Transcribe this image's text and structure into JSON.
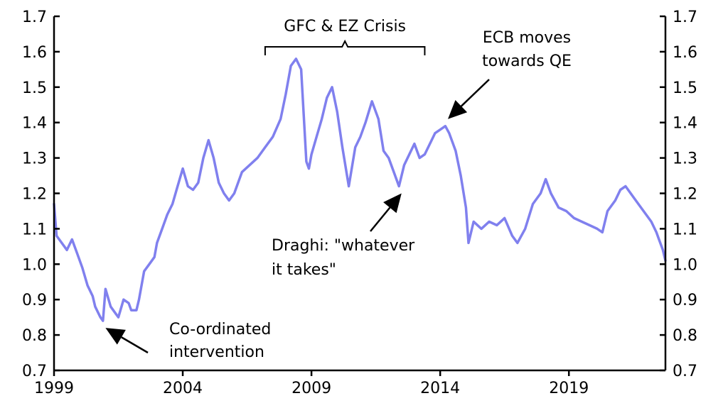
{
  "chart_data": {
    "type": "line",
    "title": "",
    "xlabel": "",
    "ylabel": "",
    "xlim": [
      1999.0,
      2022.75
    ],
    "ylim": [
      0.7,
      1.7
    ],
    "y_ticks": [
      0.7,
      0.8,
      0.9,
      1.0,
      1.1,
      1.2,
      1.3,
      1.4,
      1.5,
      1.6,
      1.7
    ],
    "y_tick_labels": [
      "0.7",
      "0.8",
      "0.9",
      "1.0",
      "1.1",
      "1.2",
      "1.3",
      "1.4",
      "1.5",
      "1.6",
      "1.7"
    ],
    "x_ticks": [
      1999,
      2004,
      2009,
      2014,
      2019
    ],
    "x_tick_labels": [
      "1999",
      "2004",
      "2009",
      "2014",
      "2019"
    ],
    "dual_y_axis": true,
    "grid": false,
    "series": [
      {
        "name": "",
        "color": "#8080ee",
        "x": [
          1999.0,
          1999.1,
          1999.3,
          1999.5,
          1999.7,
          1999.9,
          2000.1,
          2000.3,
          2000.5,
          2000.6,
          2000.8,
          2000.9,
          2001.0,
          2001.2,
          2001.4,
          2001.5,
          2001.7,
          2001.9,
          2002.0,
          2002.2,
          2002.3,
          2002.5,
          2002.7,
          2002.9,
          2003.0,
          2003.2,
          2003.4,
          2003.6,
          2003.8,
          2004.0,
          2004.2,
          2004.4,
          2004.6,
          2004.8,
          2005.0,
          2005.2,
          2005.4,
          2005.6,
          2005.8,
          2006.0,
          2006.3,
          2006.6,
          2006.9,
          2007.2,
          2007.5,
          2007.8,
          2008.0,
          2008.2,
          2008.4,
          2008.6,
          2008.8,
          2008.9,
          2009.0,
          2009.2,
          2009.4,
          2009.6,
          2009.8,
          2010.0,
          2010.2,
          2010.45,
          2010.7,
          2010.9,
          2011.1,
          2011.35,
          2011.6,
          2011.8,
          2012.0,
          2012.2,
          2012.4,
          2012.6,
          2012.8,
          2013.0,
          2013.2,
          2013.4,
          2013.6,
          2013.8,
          2014.0,
          2014.2,
          2014.35,
          2014.6,
          2014.8,
          2015.0,
          2015.1,
          2015.3,
          2015.6,
          2015.9,
          2016.2,
          2016.5,
          2016.8,
          2017.0,
          2017.3,
          2017.6,
          2017.9,
          2018.1,
          2018.3,
          2018.6,
          2018.9,
          2019.2,
          2019.5,
          2019.8,
          2020.1,
          2020.3,
          2020.5,
          2020.8,
          2021.0,
          2021.2,
          2021.5,
          2021.8,
          2022.0,
          2022.2,
          2022.4,
          2022.5,
          2022.65,
          2022.75
        ],
        "values": [
          1.17,
          1.08,
          1.06,
          1.04,
          1.07,
          1.03,
          0.99,
          0.94,
          0.91,
          0.88,
          0.85,
          0.84,
          0.93,
          0.88,
          0.86,
          0.85,
          0.9,
          0.89,
          0.87,
          0.87,
          0.9,
          0.98,
          1.0,
          1.02,
          1.06,
          1.1,
          1.14,
          1.17,
          1.22,
          1.27,
          1.22,
          1.21,
          1.23,
          1.3,
          1.35,
          1.3,
          1.23,
          1.2,
          1.18,
          1.2,
          1.26,
          1.28,
          1.3,
          1.33,
          1.36,
          1.41,
          1.48,
          1.56,
          1.58,
          1.55,
          1.29,
          1.27,
          1.31,
          1.36,
          1.41,
          1.47,
          1.5,
          1.43,
          1.33,
          1.22,
          1.33,
          1.36,
          1.4,
          1.46,
          1.41,
          1.32,
          1.3,
          1.26,
          1.22,
          1.28,
          1.31,
          1.34,
          1.3,
          1.31,
          1.34,
          1.37,
          1.38,
          1.39,
          1.37,
          1.32,
          1.25,
          1.16,
          1.06,
          1.12,
          1.1,
          1.12,
          1.11,
          1.13,
          1.08,
          1.06,
          1.1,
          1.17,
          1.2,
          1.24,
          1.2,
          1.16,
          1.15,
          1.13,
          1.12,
          1.11,
          1.1,
          1.09,
          1.15,
          1.18,
          1.21,
          1.22,
          1.19,
          1.16,
          1.14,
          1.12,
          1.09,
          1.07,
          1.04,
          1.01
        ]
      }
    ],
    "annotations": [
      {
        "id": "gfc",
        "text": "GFC & EZ Crisis",
        "type": "bracket",
        "x_start": 2007.2,
        "x_end": 2013.4
      },
      {
        "id": "ecb",
        "lines": [
          "ECB moves",
          "towards QE"
        ],
        "type": "arrow",
        "target": [
          2014.3,
          1.41
        ]
      },
      {
        "id": "draghi",
        "lines": [
          "Draghi: \"whatever",
          "it takes\""
        ],
        "type": "arrow",
        "target": [
          2012.5,
          1.2
        ]
      },
      {
        "id": "coord",
        "lines": [
          "Co-ordinated",
          "intervention"
        ],
        "type": "arrow",
        "target": [
          2001.0,
          0.82
        ]
      }
    ]
  }
}
